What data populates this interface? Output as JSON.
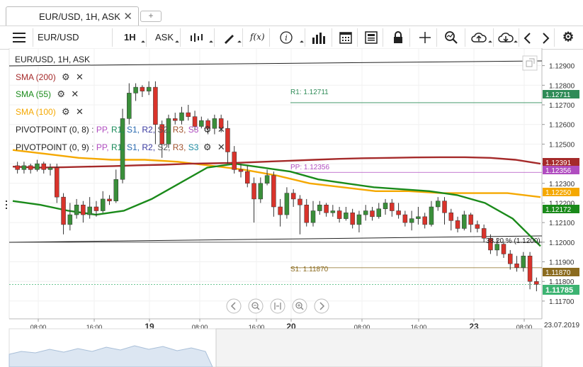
{
  "tab": {
    "title": "EUR/USD, 1H, ASK",
    "close": "✕",
    "add": "+"
  },
  "toolbar": {
    "menu_icon": "≡",
    "instrument": "EUR/USD",
    "timeframe": "1H",
    "side": "ASK",
    "fx_label": "f(x)",
    "info_label": "i"
  },
  "chart": {
    "header": "EUR/USD, 1H, ASK",
    "indicators": [
      {
        "label": "SMA (200)",
        "color": "#a52a2a"
      },
      {
        "label": "SMA (55)",
        "color": "#1a8a1a"
      },
      {
        "label": "SMA (100)",
        "color": "#f5a800"
      }
    ],
    "pivot1": {
      "label": "PIVOTPOINT (0, 8)"
    },
    "pivot2": {
      "label": "PIVOTPOINT (0, 9)"
    },
    "pivot_keys": [
      "PP,",
      "R1,",
      "S1,",
      "R2,",
      "S2,",
      "R3,",
      "S3"
    ],
    "pivot_colors": [
      "#b04dc0",
      "#1a8a5a",
      "#2a6ab0",
      "#3a3aa0",
      "#555555",
      "#a0522d",
      "#1a8aa0"
    ],
    "r1_label": "R1: 1.12711",
    "pp_label": "PP: 1.12356",
    "s1_label": "S1: 1.11870",
    "fib_label": "38.20 % (1.1200)",
    "date_stamp": "23.07.2019",
    "gear": "⚙",
    "close_x": "✕"
  },
  "chart_data": {
    "type": "candlestick",
    "instrument": "EUR/USD",
    "timeframe": "1H",
    "y_axis": {
      "ticks": [
        "1.12900",
        "1.12800",
        "1.12700",
        "1.12600",
        "1.12500",
        "1.12400",
        "1.12300",
        "1.12200",
        "1.12100",
        "1.12000",
        "1.11900",
        "1.11800",
        "1.11700"
      ],
      "ylim": [
        1.1166,
        1.1296
      ]
    },
    "x_axis": {
      "ticks": [
        "08:00",
        "16:00",
        "19",
        "08:00",
        "16:00",
        "20",
        "08:00",
        "16:00",
        "23",
        "08:00"
      ]
    },
    "price_labels": [
      {
        "value": "1.12711",
        "color": "#2e8b57"
      },
      {
        "value": "1.12391",
        "color": "#a52a2a"
      },
      {
        "value": "1.12356",
        "color": "#b04dc0"
      },
      {
        "value": "1.12250",
        "color": "#f5a800"
      },
      {
        "value": "1.12172",
        "color": "#1a8a1a"
      },
      {
        "value": "1.11870",
        "color": "#8b6b1f"
      },
      {
        "value": "1.11785",
        "color": "#3cb371"
      }
    ],
    "levels": {
      "R1": 1.12711,
      "PP": 1.12356,
      "S1": 1.1187,
      "fib_38_2": 1.12,
      "last": 1.11785
    },
    "sma200": [
      1.12385,
      1.1238,
      1.12382,
      1.12385,
      1.12388,
      1.12392,
      1.12395,
      1.124,
      1.12402,
      1.12405,
      1.1241,
      1.12415,
      1.1242,
      1.12425,
      1.12428,
      1.1243,
      1.12432,
      1.12433,
      1.12433,
      1.1243,
      1.1242,
      1.124
    ],
    "sma55": [
      1.1221,
      1.1219,
      1.1216,
      1.1214,
      1.1216,
      1.1222,
      1.123,
      1.1238,
      1.124,
      1.1238,
      1.1236,
      1.1232,
      1.123,
      1.1228,
      1.1227,
      1.1226,
      1.1224,
      1.122,
      1.1212,
      1.1198
    ],
    "sma100": [
      1.1247,
      1.1245,
      1.1243,
      1.1242,
      1.1242,
      1.1241,
      1.1239,
      1.1237,
      1.1234,
      1.123,
      1.1228,
      1.1226,
      1.1226,
      1.1225,
      1.1225,
      1.1225,
      1.1223
    ],
    "candles": [
      [
        1.1239,
        1.1237,
        1.1241,
        1.1235
      ],
      [
        1.1237,
        1.1239,
        1.1241,
        1.1235
      ],
      [
        1.1239,
        1.1237,
        1.124,
        1.1235
      ],
      [
        1.1237,
        1.124,
        1.1242,
        1.1236
      ],
      [
        1.124,
        1.1237,
        1.1241,
        1.1235
      ],
      [
        1.1237,
        1.1238,
        1.124,
        1.1234
      ],
      [
        1.1238,
        1.1223,
        1.124,
        1.122
      ],
      [
        1.1223,
        1.1209,
        1.1225,
        1.1204
      ],
      [
        1.1209,
        1.1214,
        1.122,
        1.1206
      ],
      [
        1.1214,
        1.1219,
        1.1222,
        1.1212
      ],
      [
        1.1219,
        1.1214,
        1.1221,
        1.121
      ],
      [
        1.1214,
        1.1218,
        1.1223,
        1.1212
      ],
      [
        1.1218,
        1.1216,
        1.1221,
        1.1213
      ],
      [
        1.1216,
        1.1222,
        1.1226,
        1.1215
      ],
      [
        1.1222,
        1.1221,
        1.1224,
        1.1219
      ],
      [
        1.1221,
        1.1232,
        1.1237,
        1.122
      ],
      [
        1.1232,
        1.1263,
        1.1268,
        1.123
      ],
      [
        1.1263,
        1.1276,
        1.1281,
        1.126
      ],
      [
        1.1276,
        1.1279,
        1.1281,
        1.1272
      ],
      [
        1.1279,
        1.1277,
        1.128,
        1.1274
      ],
      [
        1.1277,
        1.1279,
        1.1282,
        1.1275
      ],
      [
        1.1279,
        1.126,
        1.1282,
        1.125
      ],
      [
        1.126,
        1.125,
        1.1262,
        1.1243
      ],
      [
        1.125,
        1.1263,
        1.1265,
        1.1248
      ],
      [
        1.1263,
        1.1262,
        1.1266,
        1.126
      ],
      [
        1.1262,
        1.1266,
        1.1269,
        1.126
      ],
      [
        1.1266,
        1.1264,
        1.127,
        1.1262
      ],
      [
        1.1264,
        1.1259,
        1.1267,
        1.1257
      ],
      [
        1.1259,
        1.1262,
        1.1264,
        1.1258
      ],
      [
        1.1262,
        1.1258,
        1.1263,
        1.1255
      ],
      [
        1.1258,
        1.1263,
        1.1265,
        1.1255
      ],
      [
        1.1263,
        1.1258,
        1.1265,
        1.1256
      ],
      [
        1.1258,
        1.1246,
        1.1262,
        1.124
      ],
      [
        1.1246,
        1.1237,
        1.1249,
        1.1235
      ],
      [
        1.1237,
        1.1236,
        1.124,
        1.1233
      ],
      [
        1.1236,
        1.123,
        1.1239,
        1.1228
      ],
      [
        1.123,
        1.1222,
        1.1233,
        1.121
      ],
      [
        1.1222,
        1.123,
        1.1233,
        1.122
      ],
      [
        1.123,
        1.1234,
        1.1237,
        1.1229
      ],
      [
        1.1234,
        1.1218,
        1.1236,
        1.1213
      ],
      [
        1.1218,
        1.1214,
        1.1222,
        1.1208
      ],
      [
        1.1214,
        1.1225,
        1.1228,
        1.1212
      ],
      [
        1.1225,
        1.1222,
        1.1227,
        1.1218
      ],
      [
        1.1222,
        1.1219,
        1.1224,
        1.1204
      ],
      [
        1.1219,
        1.121,
        1.1222,
        1.1208
      ],
      [
        1.121,
        1.1216,
        1.1221,
        1.1208
      ],
      [
        1.1216,
        1.1219,
        1.1221,
        1.1214
      ],
      [
        1.1219,
        1.1215,
        1.122,
        1.1213
      ],
      [
        1.1215,
        1.1216,
        1.1219,
        1.1213
      ],
      [
        1.1216,
        1.1212,
        1.1218,
        1.121
      ],
      [
        1.1212,
        1.1215,
        1.1218,
        1.1211
      ],
      [
        1.1215,
        1.1209,
        1.1217,
        1.1207
      ],
      [
        1.1209,
        1.1214,
        1.1216,
        1.1205
      ],
      [
        1.1214,
        1.1216,
        1.1219,
        1.1211
      ],
      [
        1.1216,
        1.1213,
        1.1218,
        1.1211
      ],
      [
        1.1213,
        1.1217,
        1.122,
        1.1212
      ],
      [
        1.1217,
        1.122,
        1.1222,
        1.1214
      ],
      [
        1.122,
        1.1216,
        1.1222,
        1.1213
      ],
      [
        1.1216,
        1.1214,
        1.122,
        1.1212
      ],
      [
        1.1214,
        1.121,
        1.1216,
        1.1208
      ],
      [
        1.121,
        1.1212,
        1.1216,
        1.1206
      ],
      [
        1.1212,
        1.1213,
        1.1218,
        1.1209
      ],
      [
        1.1213,
        1.1209,
        1.1215,
        1.1207
      ],
      [
        1.1209,
        1.1218,
        1.1221,
        1.1208
      ],
      [
        1.1218,
        1.1221,
        1.1223,
        1.1216
      ],
      [
        1.1221,
        1.1215,
        1.1223,
        1.1209
      ],
      [
        1.1215,
        1.1211,
        1.1217,
        1.1206
      ],
      [
        1.1211,
        1.1207,
        1.1213,
        1.1205
      ],
      [
        1.1207,
        1.1214,
        1.1216,
        1.1206
      ],
      [
        1.1214,
        1.1209,
        1.1215,
        1.1205
      ],
      [
        1.1209,
        1.1207,
        1.1211,
        1.1205
      ],
      [
        1.1207,
        1.1202,
        1.1209,
        1.12
      ],
      [
        1.1202,
        1.1196,
        1.1204,
        1.1194
      ],
      [
        1.1196,
        1.1199,
        1.1202,
        1.1193
      ],
      [
        1.1199,
        1.1194,
        1.12,
        1.1192
      ],
      [
        1.1194,
        1.1189,
        1.1196,
        1.1186
      ],
      [
        1.1189,
        1.1187,
        1.1193,
        1.1185
      ],
      [
        1.1187,
        1.1193,
        1.1195,
        1.1185
      ],
      [
        1.1193,
        1.118,
        1.1195,
        1.1176
      ],
      [
        1.118,
        1.11785,
        1.1182,
        1.1175
      ]
    ]
  }
}
